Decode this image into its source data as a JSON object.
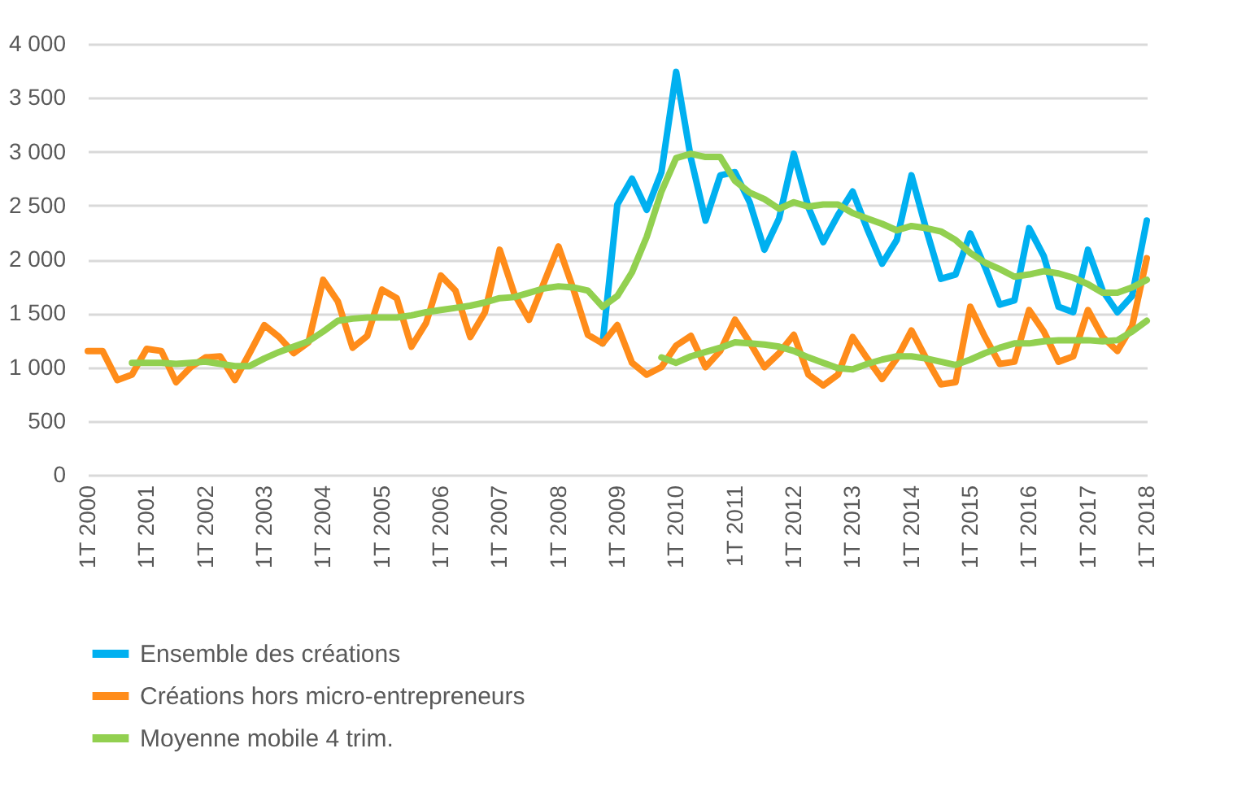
{
  "chart_data": {
    "type": "line",
    "categories": [
      "1T 2000",
      null,
      null,
      null,
      "1T 2001",
      null,
      null,
      null,
      "1T 2002",
      null,
      null,
      null,
      "1T 2003",
      null,
      null,
      null,
      "1T 2004",
      null,
      null,
      null,
      "1T 2005",
      null,
      null,
      null,
      "1T 2006",
      null,
      null,
      null,
      "1T 2007",
      null,
      null,
      null,
      "1T 2008",
      null,
      null,
      null,
      "1T 2009",
      null,
      null,
      null,
      "1T 2010",
      null,
      null,
      null,
      "1T 2011",
      null,
      null,
      null,
      "1T 2012",
      null,
      null,
      null,
      "1T 2013",
      null,
      null,
      null,
      "1T 2014",
      null,
      null,
      null,
      "1T 2015",
      null,
      null,
      null,
      "1T 2016",
      null,
      null,
      null,
      "1T 2017",
      null,
      null,
      null,
      "1T 2018"
    ],
    "series": [
      {
        "name": "Ensemble des créations",
        "color": "#00b0f0",
        "values": [
          null,
          null,
          null,
          null,
          null,
          null,
          null,
          null,
          null,
          null,
          null,
          null,
          null,
          null,
          null,
          null,
          null,
          null,
          null,
          null,
          null,
          null,
          null,
          null,
          null,
          null,
          null,
          null,
          null,
          null,
          null,
          null,
          null,
          null,
          null,
          1220,
          2510,
          2750,
          2460,
          2810,
          3740,
          2940,
          2360,
          2780,
          2810,
          2530,
          2090,
          2380,
          2980,
          2480,
          2160,
          2410,
          2630,
          2280,
          1960,
          2180,
          2780,
          2280,
          1820,
          1860,
          2240,
          1930,
          1580,
          1620,
          2290,
          2030,
          1560,
          1510,
          2090,
          1710,
          1510,
          1660,
          2360
        ]
      },
      {
        "name": "Créations hors micro-entrepreneurs",
        "color": "#ff8c1a",
        "values": [
          1150,
          1150,
          880,
          930,
          1170,
          1150,
          860,
          1000,
          1090,
          1100,
          880,
          1130,
          1390,
          1280,
          1130,
          1230,
          1810,
          1610,
          1180,
          1290,
          1720,
          1640,
          1190,
          1410,
          1850,
          1710,
          1280,
          1510,
          2090,
          1680,
          1440,
          1780,
          2120,
          1730,
          1300,
          1220,
          1390,
          1040,
          930,
          1000,
          1200,
          1290,
          1000,
          1150,
          1440,
          1230,
          1000,
          1130,
          1300,
          930,
          830,
          930,
          1280,
          1080,
          890,
          1080,
          1340,
          1080,
          840,
          860,
          1560,
          1280,
          1030,
          1050,
          1530,
          1330,
          1050,
          1100,
          1530,
          1280,
          1150,
          1380,
          2010
        ]
      },
      {
        "name": "Moyenne mobile 4 trim.",
        "color": "#92d050",
        "values": [
          null,
          null,
          null,
          1040,
          1040,
          1040,
          1030,
          1040,
          1050,
          1030,
          1010,
          1010,
          1080,
          1140,
          1190,
          1240,
          1330,
          1430,
          1450,
          1460,
          1460,
          1460,
          1480,
          1510,
          1530,
          1550,
          1570,
          1600,
          1640,
          1650,
          1690,
          1730,
          1750,
          1740,
          1710,
          1560,
          1660,
          1880,
          2210,
          2630,
          2940,
          2980,
          2950,
          2950,
          2730,
          2620,
          2560,
          2470,
          2530,
          2490,
          2510,
          2510,
          2430,
          2380,
          2330,
          2270,
          2310,
          2290,
          2260,
          2180,
          2060,
          1970,
          1910,
          1840,
          1860,
          1890,
          1870,
          1830,
          1770,
          1690,
          1690,
          1740,
          1810
        ]
      },
      {
        "color": "#92d050",
        "values": [
          null,
          null,
          null,
          null,
          null,
          null,
          null,
          null,
          null,
          null,
          null,
          null,
          null,
          null,
          null,
          null,
          null,
          null,
          null,
          null,
          null,
          null,
          null,
          null,
          null,
          null,
          null,
          null,
          null,
          null,
          null,
          null,
          null,
          null,
          null,
          null,
          null,
          null,
          null,
          1090,
          1040,
          1100,
          1140,
          1180,
          1230,
          1220,
          1210,
          1190,
          1150,
          1090,
          1040,
          990,
          980,
          1030,
          1070,
          1100,
          1100,
          1080,
          1050,
          1020,
          1070,
          1130,
          1180,
          1220,
          1220,
          1240,
          1250,
          1250,
          1250,
          1240,
          1250,
          1330,
          1430
        ]
      }
    ],
    "ylim": [
      0,
      4000
    ],
    "yticks": [
      0,
      500,
      {
        "value": 1000,
        "label": "1 000"
      },
      {
        "value": 1500,
        "label": "1 500"
      },
      {
        "value": 2000,
        "label": "2 000"
      },
      {
        "value": 2500,
        "label": "2 500"
      },
      {
        "value": 3000,
        "label": "3 000"
      },
      {
        "value": 3500,
        "label": "3 500"
      },
      {
        "value": 4000,
        "label": "4 000"
      }
    ],
    "grid": "y",
    "legend": "bottom",
    "line_style": "solid",
    "marker": "none"
  }
}
